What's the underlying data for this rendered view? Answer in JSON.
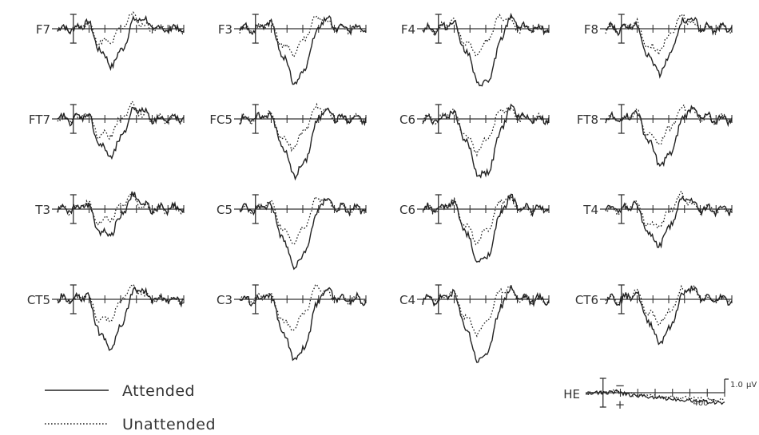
{
  "chart_data": {
    "type": "line",
    "title": "",
    "series_names": [
      "Attended",
      "Unattended"
    ],
    "legend": {
      "position": "bottom-left",
      "items": [
        {
          "label": "Attended",
          "style": "solid"
        },
        {
          "label": "Unattended",
          "style": "dotted"
        }
      ]
    },
    "scale": {
      "amplitude": "1.0",
      "unit": "µV",
      "time_marker": "400"
    },
    "negative_up": true,
    "channels": [
      {
        "name": "F7",
        "peak_attended": -2.4,
        "peak_unattended": -1.0,
        "lat_attended": 240,
        "lat_unattended": 200
      },
      {
        "name": "F3",
        "peak_attended": -3.6,
        "peak_unattended": -1.6,
        "lat_attended": 260,
        "lat_unattended": 230
      },
      {
        "name": "F4",
        "peak_attended": -4.0,
        "peak_unattended": -1.6,
        "lat_attended": 280,
        "lat_unattended": 240
      },
      {
        "name": "F8",
        "peak_attended": -2.9,
        "peak_unattended": -1.5,
        "lat_attended": 240,
        "lat_unattended": 220
      },
      {
        "name": "FT7",
        "peak_attended": -2.5,
        "peak_unattended": -1.2,
        "lat_attended": 230,
        "lat_unattended": 200
      },
      {
        "name": "FC5",
        "peak_attended": -3.8,
        "peak_unattended": -1.9,
        "lat_attended": 260,
        "lat_unattended": 230
      },
      {
        "name": "C6",
        "peak_attended": -4.0,
        "peak_unattended": -2.1,
        "lat_attended": 280,
        "lat_unattended": 250
      },
      {
        "name": "FT8",
        "peak_attended": -3.1,
        "peak_unattended": -1.5,
        "lat_attended": 260,
        "lat_unattended": 230
      },
      {
        "name": "T3",
        "peak_attended": -1.8,
        "peak_unattended": -0.8,
        "lat_attended": 210,
        "lat_unattended": 190
      },
      {
        "name": "C5",
        "peak_attended": -3.9,
        "peak_unattended": -2.1,
        "lat_attended": 260,
        "lat_unattended": 240
      },
      {
        "name": "C6",
        "peak_attended": -3.7,
        "peak_unattended": -2.1,
        "lat_attended": 270,
        "lat_unattended": 250
      },
      {
        "name": "T4",
        "peak_attended": -2.4,
        "peak_unattended": -1.2,
        "lat_attended": 230,
        "lat_unattended": 210
      },
      {
        "name": "CT5",
        "peak_attended": -3.2,
        "peak_unattended": -1.5,
        "lat_attended": 230,
        "lat_unattended": 200
      },
      {
        "name": "C3",
        "peak_attended": -4.1,
        "peak_unattended": -2.0,
        "lat_attended": 260,
        "lat_unattended": 230
      },
      {
        "name": "C4",
        "peak_attended": -4.2,
        "peak_unattended": -2.2,
        "lat_attended": 270,
        "lat_unattended": 250
      },
      {
        "name": "CT6",
        "peak_attended": -2.8,
        "peak_unattended": -1.5,
        "lat_attended": 250,
        "lat_unattended": 240
      }
    ],
    "he_channel": {
      "name": "HE",
      "polarity_minus": "−",
      "polarity_plus": "+"
    }
  }
}
